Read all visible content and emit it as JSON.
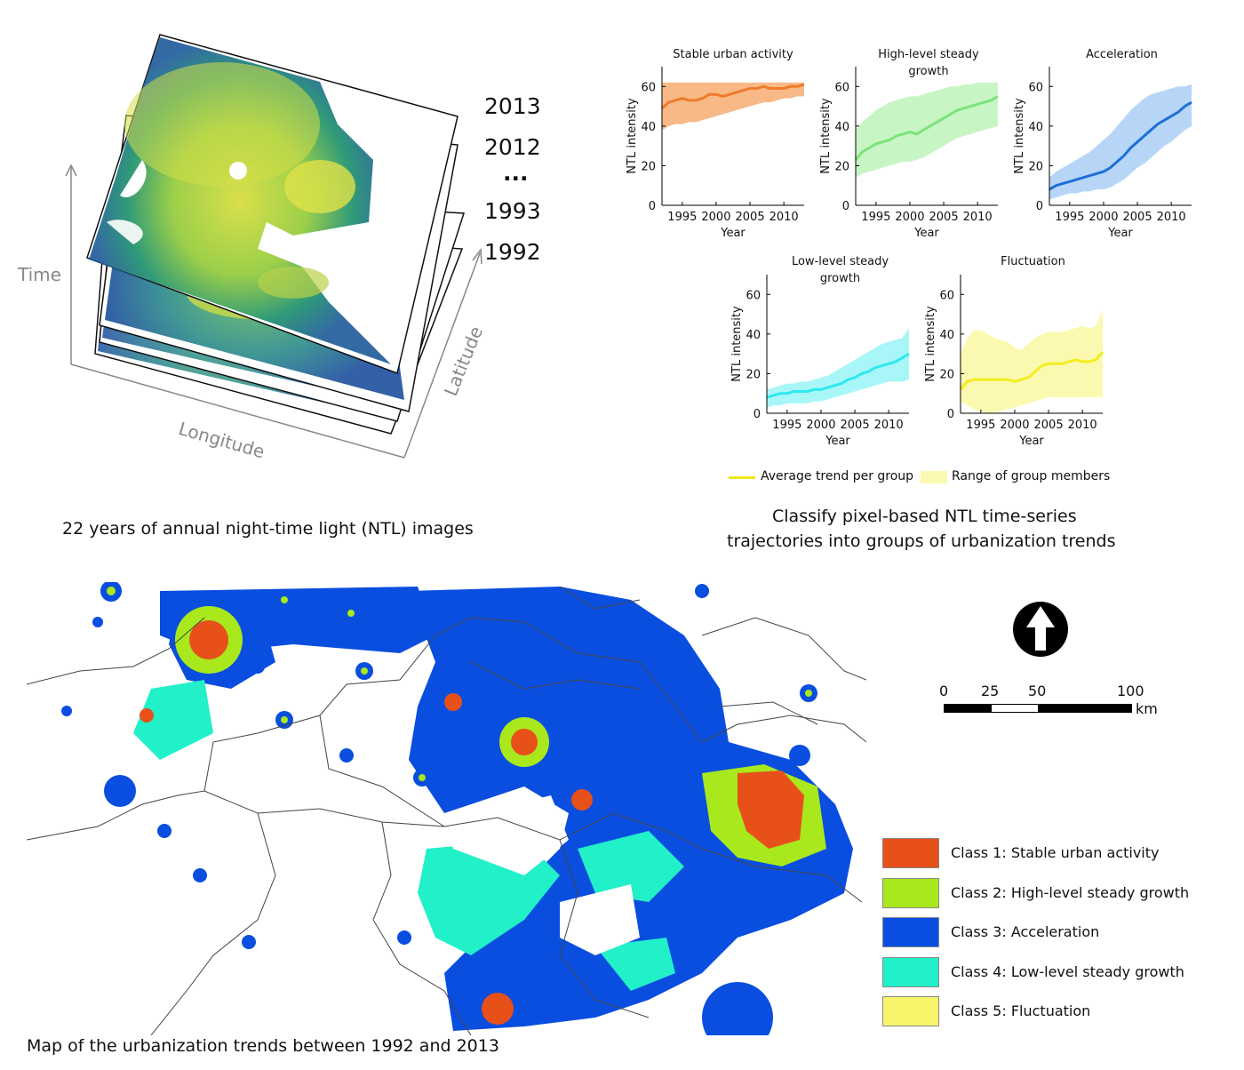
{
  "stack": {
    "years": [
      "2013",
      "2012",
      "...",
      "1993",
      "1992"
    ],
    "axis_time": "Time",
    "axis_longitude": "Longitude",
    "axis_latitude": "Latitude",
    "caption": "22 years of annual night-time light (NTL) images"
  },
  "chart_data": [
    {
      "type": "line",
      "title": "Stable urban activity",
      "xlabel": "Year",
      "ylabel": "NTL intensity",
      "xlim": [
        1992,
        2013
      ],
      "ylim": [
        0,
        70
      ],
      "xticks": [
        1995,
        2000,
        2005,
        2010
      ],
      "yticks": [
        0,
        20,
        40,
        60
      ],
      "color": "#ee7a2a",
      "band_color": "#f8b987",
      "x": [
        1992,
        1993,
        1994,
        1995,
        1996,
        1997,
        1998,
        1999,
        2000,
        2001,
        2002,
        2003,
        2004,
        2005,
        2006,
        2007,
        2008,
        2009,
        2010,
        2011,
        2012,
        2013
      ],
      "mean": [
        49,
        52,
        53,
        54,
        53,
        53,
        54,
        56,
        56,
        55,
        56,
        57,
        58,
        59,
        59,
        60,
        59,
        59,
        59,
        60,
        60,
        61
      ],
      "lower": [
        38,
        40,
        41,
        41,
        42,
        42,
        43,
        44,
        45,
        46,
        47,
        48,
        49,
        50,
        51,
        52,
        52,
        53,
        54,
        54,
        55,
        55
      ],
      "upper": [
        62,
        62,
        62,
        62,
        62,
        62,
        62,
        62,
        62,
        62,
        62,
        62,
        62,
        62,
        62,
        62,
        62,
        62,
        62,
        62,
        62,
        62
      ]
    },
    {
      "type": "line",
      "title": "High-level steady growth",
      "xlabel": "Year",
      "ylabel": "NTL intensity",
      "xlim": [
        1992,
        2013
      ],
      "ylim": [
        0,
        70
      ],
      "xticks": [
        1995,
        2000,
        2005,
        2010
      ],
      "yticks": [
        0,
        20,
        40,
        60
      ],
      "color": "#7be37b",
      "band_color": "#c8f5c4",
      "x": [
        1992,
        1993,
        1994,
        1995,
        1996,
        1997,
        1998,
        1999,
        2000,
        2001,
        2002,
        2003,
        2004,
        2005,
        2006,
        2007,
        2008,
        2009,
        2010,
        2011,
        2012,
        2013
      ],
      "mean": [
        23,
        27,
        29,
        31,
        32,
        33,
        35,
        36,
        37,
        36,
        38,
        40,
        42,
        44,
        46,
        48,
        49,
        50,
        51,
        52,
        53,
        55
      ],
      "lower": [
        14,
        16,
        17,
        18,
        19,
        20,
        21,
        22,
        22,
        23,
        24,
        26,
        28,
        30,
        32,
        34,
        35,
        36,
        37,
        38,
        39,
        40
      ],
      "upper": [
        38,
        42,
        45,
        48,
        50,
        52,
        53,
        54,
        55,
        55,
        56,
        57,
        58,
        59,
        60,
        60,
        61,
        61,
        62,
        62,
        62,
        62
      ]
    },
    {
      "type": "line",
      "title": "Acceleration",
      "xlabel": "Year",
      "ylabel": "NTL intensity",
      "xlim": [
        1992,
        2013
      ],
      "ylim": [
        0,
        70
      ],
      "xticks": [
        1995,
        2000,
        2005,
        2010
      ],
      "yticks": [
        0,
        20,
        40,
        60
      ],
      "color": "#1f6fd6",
      "band_color": "#b7d6f7",
      "x": [
        1992,
        1993,
        1994,
        1995,
        1996,
        1997,
        1998,
        1999,
        2000,
        2001,
        2002,
        2003,
        2004,
        2005,
        2006,
        2007,
        2008,
        2009,
        2010,
        2011,
        2012,
        2013
      ],
      "mean": [
        8,
        10,
        11,
        12,
        13,
        14,
        15,
        16,
        17,
        19,
        22,
        25,
        29,
        32,
        35,
        38,
        41,
        43,
        45,
        47,
        50,
        52
      ],
      "lower": [
        3,
        4,
        5,
        6,
        6,
        7,
        7,
        8,
        8,
        9,
        11,
        13,
        16,
        19,
        21,
        24,
        27,
        30,
        32,
        35,
        38,
        40
      ],
      "upper": [
        14,
        17,
        19,
        21,
        23,
        25,
        27,
        30,
        33,
        36,
        40,
        44,
        48,
        51,
        54,
        56,
        57,
        58,
        59,
        60,
        60,
        61
      ]
    },
    {
      "type": "line",
      "title": "Low-level steady growth",
      "xlabel": "Year",
      "ylabel": "NTL intensity",
      "xlim": [
        1992,
        2013
      ],
      "ylim": [
        0,
        70
      ],
      "xticks": [
        1995,
        2000,
        2005,
        2010
      ],
      "yticks": [
        0,
        20,
        40,
        60
      ],
      "color": "#2ee8f0",
      "band_color": "#a8f6f8",
      "x": [
        1992,
        1993,
        1994,
        1995,
        1996,
        1997,
        1998,
        1999,
        2000,
        2001,
        2002,
        2003,
        2004,
        2005,
        2006,
        2007,
        2008,
        2009,
        2010,
        2011,
        2012,
        2013
      ],
      "mean": [
        8,
        9,
        10,
        10,
        11,
        11,
        11,
        12,
        12,
        13,
        14,
        15,
        17,
        18,
        20,
        21,
        23,
        24,
        25,
        26,
        28,
        30
      ],
      "lower": [
        3,
        4,
        4,
        5,
        5,
        5,
        5,
        6,
        6,
        7,
        8,
        9,
        10,
        11,
        12,
        13,
        14,
        15,
        16,
        16,
        16,
        17
      ],
      "upper": [
        12,
        13,
        14,
        15,
        15,
        16,
        16,
        17,
        18,
        19,
        21,
        23,
        25,
        27,
        29,
        31,
        33,
        35,
        36,
        37,
        38,
        43
      ]
    },
    {
      "type": "line",
      "title": "Fluctuation",
      "xlabel": "Year",
      "ylabel": "NTL intensity",
      "xlim": [
        1992,
        2013
      ],
      "ylim": [
        0,
        70
      ],
      "xticks": [
        1995,
        2000,
        2005,
        2010
      ],
      "yticks": [
        0,
        20,
        40,
        60
      ],
      "color": "#f2ee1d",
      "band_color": "#fbf9b0",
      "x": [
        1992,
        1993,
        1994,
        1995,
        1996,
        1997,
        1998,
        1999,
        2000,
        2001,
        2002,
        2003,
        2004,
        2005,
        2006,
        2007,
        2008,
        2009,
        2010,
        2011,
        2012,
        2013
      ],
      "mean": [
        12,
        16,
        17,
        17,
        17,
        17,
        17,
        17,
        16,
        17,
        18,
        21,
        24,
        25,
        25,
        25,
        26,
        27,
        26,
        26,
        27,
        31
      ],
      "lower": [
        6,
        4,
        2,
        1,
        0,
        0,
        1,
        2,
        3,
        4,
        5,
        6,
        7,
        8,
        8,
        8,
        8,
        8,
        8,
        8,
        8,
        8
      ],
      "upper": [
        30,
        38,
        42,
        42,
        40,
        38,
        37,
        36,
        33,
        32,
        35,
        38,
        40,
        41,
        41,
        41,
        42,
        43,
        44,
        43,
        44,
        52
      ]
    }
  ],
  "legend": {
    "mean_label": "Average trend per group",
    "range_label": "Range of group members"
  },
  "classify_caption_line1": "Classify pixel-based NTL time-series",
  "classify_caption_line2": "trajectories into groups of urbanization trends",
  "map": {
    "caption": "Map of the urbanization trends between 1992 and 2013",
    "classes": [
      {
        "label": "Class 1: Stable urban activity",
        "color": "#e8501a"
      },
      {
        "label": "Class 2: High-level steady growth",
        "color": "#a8e81c"
      },
      {
        "label": "Class 3: Acceleration",
        "color": "#0a4ee0"
      },
      {
        "label": "Class 4: Low-level steady growth",
        "color": "#22f0c8"
      },
      {
        "label": "Class 5: Fluctuation",
        "color": "#f7f56a"
      }
    ],
    "scale": {
      "ticks": [
        "0",
        "25",
        "50",
        "100"
      ],
      "unit": "km"
    }
  }
}
